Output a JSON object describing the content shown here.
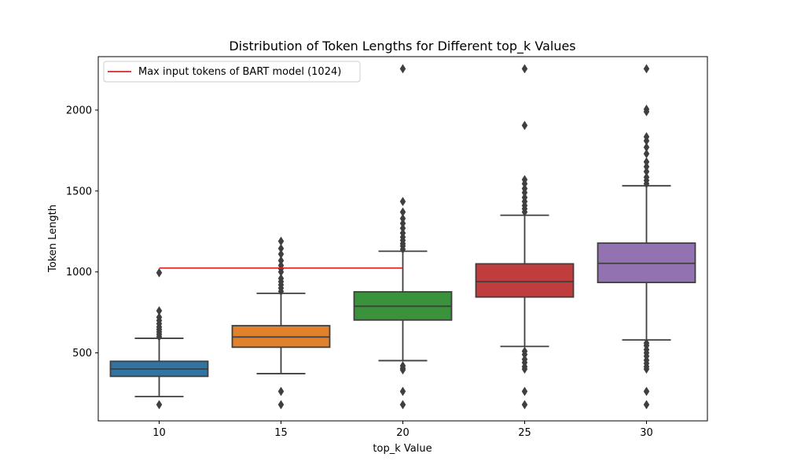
{
  "chart_data": {
    "type": "box",
    "title": "Distribution of Token Lengths for Different top_k Values",
    "xlabel": "top_k Value",
    "ylabel": "Token Length",
    "ylim": [
      80,
      2330
    ],
    "yticks": [
      500,
      1000,
      1500,
      2000
    ],
    "categories": [
      "10",
      "15",
      "20",
      "25",
      "30"
    ],
    "boxes": [
      {
        "category": "10",
        "color": "#3274a1",
        "whisker_low": 230,
        "q1": 355,
        "median": 400,
        "q3": 448,
        "whisker_high": 590,
        "outliers": [
          180,
          600,
          615,
          630,
          645,
          660,
          680,
          700,
          720,
          760,
          995
        ]
      },
      {
        "category": "15",
        "color": "#e1812c",
        "whisker_low": 372,
        "q1": 535,
        "median": 598,
        "q3": 668,
        "whisker_high": 868,
        "outliers": [
          180,
          262,
          880,
          900,
          920,
          940,
          960,
          1000,
          1020,
          1040,
          1070,
          1110,
          1145,
          1190
        ]
      },
      {
        "category": "20",
        "color": "#3a923a",
        "whisker_low": 452,
        "q1": 703,
        "median": 788,
        "q3": 877,
        "whisker_high": 1128,
        "outliers": [
          180,
          262,
          395,
          405,
          420,
          1140,
          1160,
          1175,
          1195,
          1215,
          1240,
          1270,
          1300,
          1330,
          1370,
          1435,
          2255
        ]
      },
      {
        "category": "25",
        "color": "#c03d3e",
        "whisker_low": 540,
        "q1": 845,
        "median": 940,
        "q3": 1050,
        "whisker_high": 1350,
        "outliers": [
          180,
          262,
          400,
          415,
          440,
          460,
          490,
          510,
          1370,
          1390,
          1410,
          1435,
          1460,
          1490,
          1515,
          1545,
          1570,
          1905,
          2255
        ]
      },
      {
        "category": "30",
        "color": "#9372b2",
        "whisker_low": 580,
        "q1": 935,
        "median": 1053,
        "q3": 1178,
        "whisker_high": 1532,
        "outliers": [
          180,
          262,
          400,
          415,
          435,
          455,
          480,
          500,
          520,
          545,
          560,
          1545,
          1565,
          1585,
          1620,
          1650,
          1680,
          1730,
          1770,
          1810,
          1835,
          1990,
          2005,
          2255
        ]
      }
    ],
    "reference_line": {
      "label": "Max input tokens of BART model (1024)",
      "y": 1024,
      "x_from": "10",
      "x_to": "20",
      "color": "#d62728"
    },
    "legend": {
      "placement": "top-left"
    },
    "grid": false
  }
}
